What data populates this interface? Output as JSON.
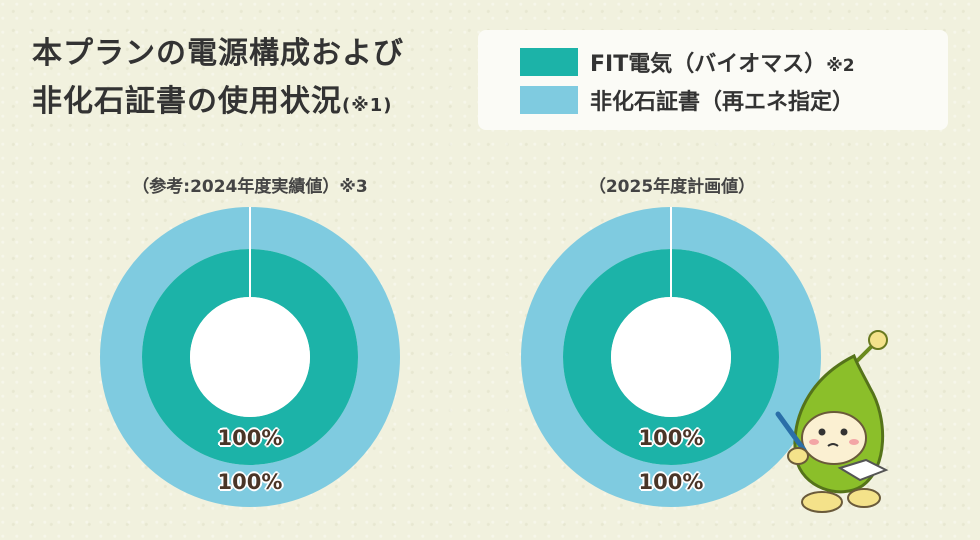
{
  "title": {
    "line1": "本プランの電源構成および",
    "line2": "非化石証書の使用状況",
    "note": "(※1)"
  },
  "legend": [
    {
      "label": "FIT電気（バイオマス）",
      "note": "※2",
      "color": "#1cb3a8"
    },
    {
      "label": "非化石証書（再エネ指定）",
      "note": "",
      "color": "#7fcbe0"
    }
  ],
  "colors": {
    "inner": "#1cb3a8",
    "outer": "#7fcbe0",
    "background": "#f1f1de"
  },
  "chart_data": [
    {
      "type": "pie",
      "title": "（参考:2024年度実績値）※3",
      "series": [
        {
          "name": "FIT電気（バイオマス）",
          "values": [
            100
          ],
          "label": "100%"
        },
        {
          "name": "非化石証書（再エネ指定）",
          "values": [
            100
          ],
          "label": "100%"
        }
      ]
    },
    {
      "type": "pie",
      "title": "（2025年度計画値）",
      "series": [
        {
          "name": "FIT電気（バイオマス）",
          "values": [
            100
          ],
          "label": "100%"
        },
        {
          "name": "非化石証書（再エネ指定）",
          "values": [
            100
          ],
          "label": "100%"
        }
      ]
    }
  ]
}
